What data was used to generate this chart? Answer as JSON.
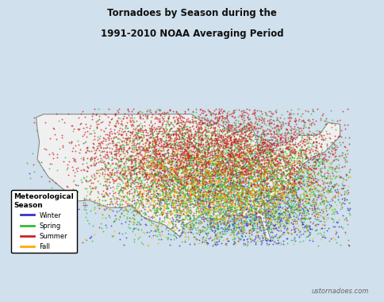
{
  "title_line1": "Tornadoes by Season during the",
  "title_line2": "1991-2010 NOAA Averaging Period",
  "background_color": "#d0e0ec",
  "map_fill_color": "#f0f0f0",
  "map_edge_color": "#888888",
  "legend_title": "Meteorological\nSeason",
  "legend_entries": [
    "Winter",
    "Spring",
    "Summer",
    "Fall"
  ],
  "legend_colors": [
    "#3333cc",
    "#33bb33",
    "#cc2222",
    "#ffaa00"
  ],
  "watermark": "ustornadoes.com",
  "dot_alpha": 0.75,
  "dot_size": 1.8,
  "n_winter": 1400,
  "n_spring": 5000,
  "n_summer": 4500,
  "n_fall": 1500
}
